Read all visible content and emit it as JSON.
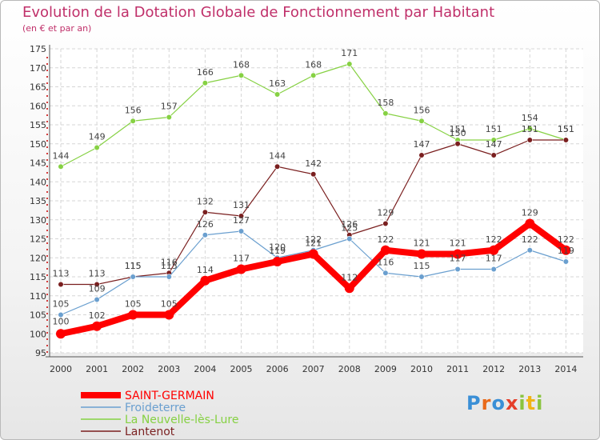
{
  "header": {
    "title": "Evolution de la Dotation Globale de Fonctionnement par Habitant",
    "subtitle": "(en € et par an)"
  },
  "chart_data": {
    "type": "line",
    "title": "Evolution de la Dotation Globale de Fonctionnement par Habitant",
    "subtitle": "(en € et par an)",
    "x": [
      2000,
      2001,
      2002,
      2003,
      2004,
      2005,
      2006,
      2007,
      2008,
      2009,
      2010,
      2011,
      2012,
      2013,
      2014
    ],
    "ylim": [
      95,
      175
    ],
    "yticks": [
      95,
      100,
      105,
      110,
      115,
      120,
      125,
      130,
      135,
      140,
      145,
      150,
      155,
      160,
      165,
      170,
      175
    ],
    "grid": true,
    "legend_position": "bottom-left",
    "series": [
      {
        "name": "SAINT-GERMAIN",
        "color": "#ff0000",
        "values": [
          100,
          102,
          105,
          105,
          114,
          117,
          119,
          121,
          112,
          122,
          121,
          121,
          122,
          129,
          122
        ]
      },
      {
        "name": "Froideterre",
        "color": "#6a9fcf",
        "values": [
          105,
          109,
          115,
          115,
          126,
          127,
          120,
          122,
          125,
          116,
          115,
          117,
          117,
          122,
          119
        ]
      },
      {
        "name": "La Neuvelle-lès-Lure",
        "color": "#86d143",
        "values": [
          144,
          149,
          156,
          157,
          166,
          168,
          163,
          168,
          171,
          158,
          156,
          151,
          151,
          154,
          151
        ]
      },
      {
        "name": "Lantenot",
        "color": "#7a1f1f",
        "values": [
          113,
          113,
          115,
          116,
          132,
          131,
          144,
          142,
          126,
          129,
          147,
          150,
          147,
          151,
          151
        ]
      }
    ]
  },
  "logo": {
    "text": "Proxiti",
    "colors": [
      "#3a8fd6",
      "#e96a1a",
      "#3a8fd6",
      "#e53f2a",
      "#8ac43f",
      "#f0b416",
      "#8ac43f"
    ]
  }
}
